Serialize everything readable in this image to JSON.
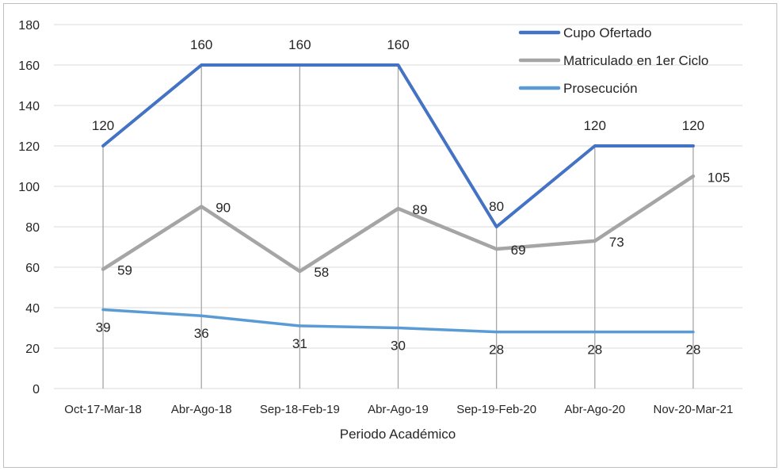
{
  "chart_data": {
    "type": "line",
    "categories": [
      "Oct-17-Mar-18",
      "Abr-Ago-18",
      "Sep-18-Feb-19",
      "Abr-Ago-19",
      "Sep-19-Feb-20",
      "Abr-Ago-20",
      "Nov-20-Mar-21"
    ],
    "series": [
      {
        "name": "Cupo Ofertado",
        "color": "#4472C4",
        "values": [
          120,
          160,
          160,
          160,
          80,
          120,
          120
        ]
      },
      {
        "name": "Matriculado en 1er Ciclo",
        "color": "#A5A5A5",
        "values": [
          59,
          90,
          58,
          89,
          69,
          73,
          105
        ]
      },
      {
        "name": "Prosecución",
        "color": "#5B9BD5",
        "values": [
          39,
          36,
          31,
          30,
          28,
          28,
          28
        ]
      }
    ],
    "xlabel": "Periodo Académico",
    "ylabel": "",
    "ylim": [
      0,
      180
    ],
    "yticks": [
      0,
      20,
      40,
      60,
      80,
      100,
      120,
      140,
      160,
      180
    ],
    "grid": true,
    "legend_position": "top-right"
  }
}
